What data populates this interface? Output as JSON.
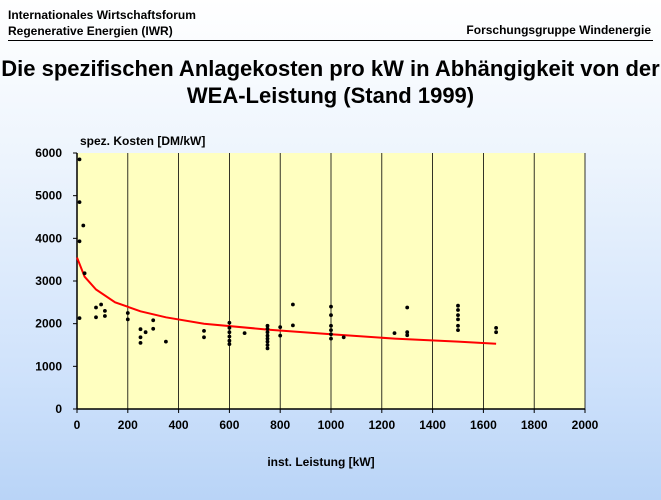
{
  "header": {
    "org_line1": "Internationales Wirtschaftsforum",
    "org_line2": "Regenerative Energien (IWR)",
    "group": "Forschungsgruppe Windenergie"
  },
  "title": {
    "line1": "Die spezifischen Anlagekosten pro kW in Abhängigkeit von der",
    "line2": "WEA-Leistung (Stand 1999)"
  },
  "colors": {
    "plot_background": "#ffffc0",
    "points": "#000000",
    "trend": "#ff0000",
    "grid": "#000000"
  },
  "chart_data": {
    "type": "scatter",
    "ylabel": "spez. Kosten [DM/kW]",
    "xlabel": "inst. Leistung [kW]",
    "xlim": [
      0,
      2000
    ],
    "ylim": [
      0,
      6000
    ],
    "x_ticks": [
      0,
      200,
      400,
      600,
      800,
      1000,
      1200,
      1400,
      1600,
      1800,
      2000
    ],
    "y_ticks": [
      0,
      1000,
      2000,
      3000,
      4000,
      5000,
      6000
    ],
    "grid": "vertical",
    "legend": "none",
    "points": [
      [
        10,
        5850
      ],
      [
        10,
        4850
      ],
      [
        10,
        3930
      ],
      [
        10,
        2130
      ],
      [
        25,
        4300
      ],
      [
        30,
        3180
      ],
      [
        75,
        2380
      ],
      [
        75,
        2150
      ],
      [
        95,
        2450
      ],
      [
        110,
        2300
      ],
      [
        110,
        2180
      ],
      [
        200,
        2250
      ],
      [
        200,
        2100
      ],
      [
        250,
        1870
      ],
      [
        250,
        1680
      ],
      [
        250,
        1550
      ],
      [
        270,
        1800
      ],
      [
        300,
        2080
      ],
      [
        300,
        1880
      ],
      [
        350,
        1580
      ],
      [
        500,
        1830
      ],
      [
        500,
        1680
      ],
      [
        600,
        2020
      ],
      [
        600,
        1900
      ],
      [
        600,
        1800
      ],
      [
        600,
        1700
      ],
      [
        600,
        1600
      ],
      [
        600,
        1520
      ],
      [
        660,
        1780
      ],
      [
        750,
        1950
      ],
      [
        750,
        1880
      ],
      [
        750,
        1800
      ],
      [
        750,
        1720
      ],
      [
        750,
        1650
      ],
      [
        750,
        1580
      ],
      [
        750,
        1500
      ],
      [
        750,
        1420
      ],
      [
        800,
        1920
      ],
      [
        800,
        1720
      ],
      [
        850,
        2450
      ],
      [
        850,
        1960
      ],
      [
        1000,
        2400
      ],
      [
        1000,
        2200
      ],
      [
        1000,
        1950
      ],
      [
        1000,
        1850
      ],
      [
        1000,
        1750
      ],
      [
        1000,
        1650
      ],
      [
        1050,
        1680
      ],
      [
        1250,
        1780
      ],
      [
        1300,
        2380
      ],
      [
        1300,
        1800
      ],
      [
        1300,
        1730
      ],
      [
        1500,
        2420
      ],
      [
        1500,
        2320
      ],
      [
        1500,
        2200
      ],
      [
        1500,
        2100
      ],
      [
        1500,
        1950
      ],
      [
        1500,
        1850
      ],
      [
        1650,
        1900
      ],
      [
        1650,
        1800
      ]
    ],
    "trend_line": [
      [
        0,
        3550
      ],
      [
        30,
        3100
      ],
      [
        75,
        2800
      ],
      [
        150,
        2500
      ],
      [
        250,
        2290
      ],
      [
        350,
        2150
      ],
      [
        500,
        2000
      ],
      [
        750,
        1860
      ],
      [
        1000,
        1750
      ],
      [
        1250,
        1650
      ],
      [
        1500,
        1580
      ],
      [
        1650,
        1530
      ]
    ]
  }
}
